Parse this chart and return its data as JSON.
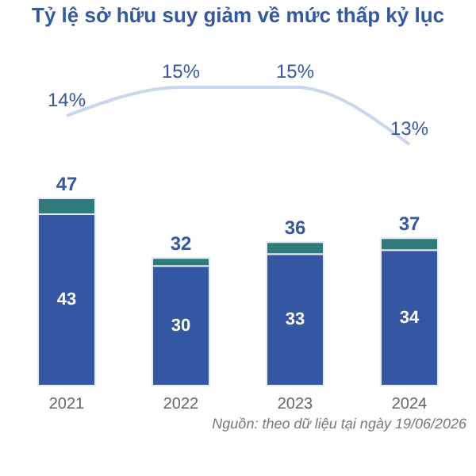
{
  "chart_data": [
    {
      "type": "line",
      "title": "Tỷ lệ sở hữu suy giảm về mức thấp kỷ lục",
      "categories": [
        "2021",
        "2022",
        "2023",
        "2024"
      ],
      "color": "#c9d6ee",
      "values": [
        14,
        15,
        15,
        13
      ],
      "value_labels": [
        "14%",
        "15%",
        "15%",
        "13%"
      ],
      "tick_labels": false
    },
    {
      "type": "bar",
      "categories": [
        "2021",
        "2022",
        "2023",
        "2024"
      ],
      "stacked": true,
      "series": [
        {
          "color": "#3457a4",
          "values": [
            43,
            30,
            33,
            34
          ],
          "value_labels": [
            "43",
            "30",
            "33",
            "34"
          ]
        },
        {
          "color": "#2f7a7a",
          "values": [
            4,
            2,
            3,
            3
          ]
        }
      ],
      "totals": [
        "47",
        "32",
        "36",
        "37"
      ],
      "annotations": [
        "Nguồn: theo dữ liệu tại ngày 19/06/2026"
      ],
      "tick_labels": "x"
    }
  ]
}
